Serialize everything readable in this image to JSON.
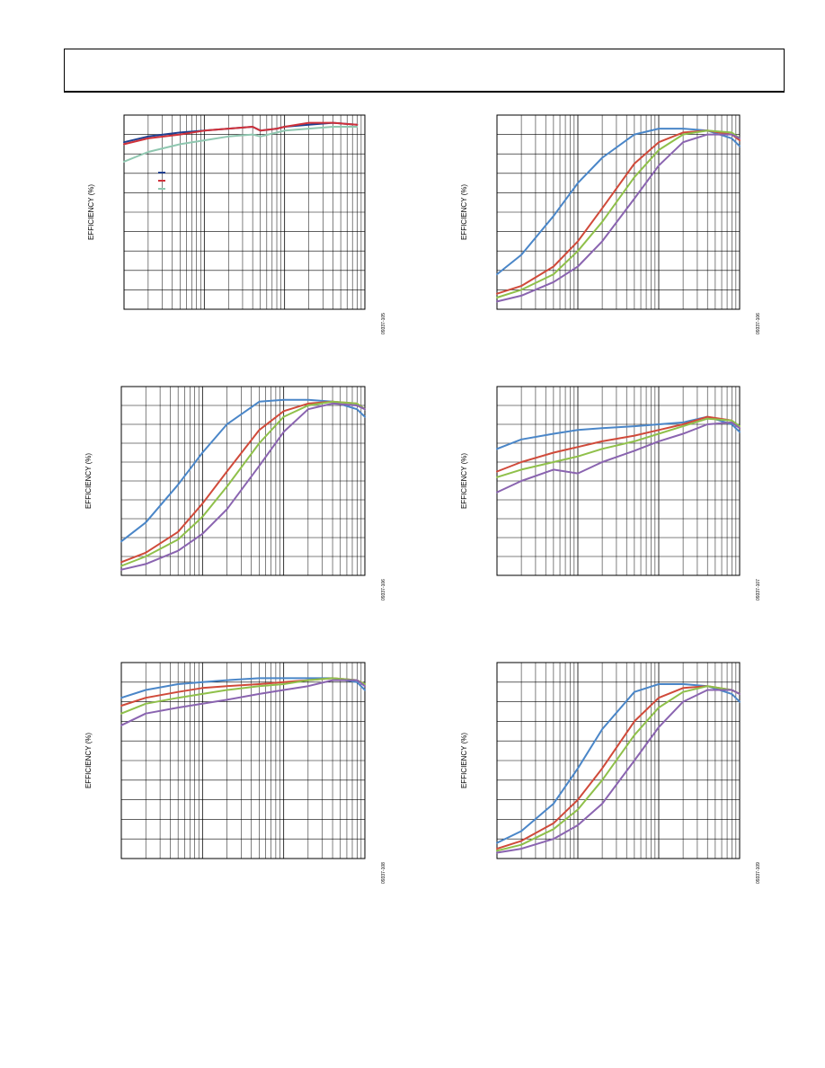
{
  "page": {
    "header_box": ""
  },
  "chart_data": [
    {
      "id": "chart-1",
      "type": "line",
      "ylabel": "EFFICIENCY (%)",
      "figure_id": "09337-105",
      "x_scale": "log",
      "xlim": [
        1,
        1000
      ],
      "ylim": [
        0,
        100
      ],
      "grid": true,
      "legend_position": "upper-left",
      "series": [
        {
          "color": "#1f3f8f",
          "x": [
            1,
            2,
            5,
            10,
            20,
            40,
            50,
            80,
            100,
            200,
            400,
            800
          ],
          "y": [
            86,
            89,
            91,
            92,
            93,
            94,
            92,
            93,
            94,
            95,
            96,
            95
          ]
        },
        {
          "color": "#d0313a",
          "x": [
            1,
            2,
            5,
            10,
            20,
            40,
            50,
            80,
            100,
            200,
            400,
            800
          ],
          "y": [
            85,
            88,
            90,
            92,
            93,
            94,
            92,
            93,
            94,
            96,
            96,
            95
          ]
        },
        {
          "color": "#8fc7b0",
          "x": [
            1,
            2,
            5,
            10,
            20,
            40,
            50,
            80,
            100,
            200,
            400,
            800
          ],
          "y": [
            76,
            81,
            85,
            87,
            89,
            90,
            89,
            91,
            92,
            93,
            94,
            94
          ]
        }
      ]
    },
    {
      "id": "chart-2",
      "type": "line",
      "ylabel": "EFFICIENCY (%)",
      "figure_id": "09337-106",
      "x_scale": "log",
      "xlim": [
        1,
        1000
      ],
      "ylim": [
        0,
        100
      ],
      "grid": true,
      "series": [
        {
          "color": "#4a86c8",
          "x": [
            1,
            2,
            5,
            10,
            20,
            50,
            100,
            200,
            400,
            800,
            1000
          ],
          "y": [
            18,
            28,
            48,
            65,
            78,
            90,
            93,
            93,
            92,
            88,
            84
          ]
        },
        {
          "color": "#d04a3a",
          "x": [
            1,
            2,
            5,
            10,
            20,
            50,
            100,
            200,
            400,
            800,
            1000
          ],
          "y": [
            8,
            12,
            22,
            35,
            52,
            75,
            86,
            91,
            92,
            90,
            87
          ]
        },
        {
          "color": "#8fc04a",
          "x": [
            1,
            2,
            5,
            10,
            20,
            50,
            100,
            200,
            400,
            800,
            1000
          ],
          "y": [
            6,
            10,
            18,
            30,
            45,
            68,
            82,
            90,
            92,
            91,
            88
          ]
        },
        {
          "color": "#8a64b0",
          "x": [
            1,
            2,
            5,
            10,
            20,
            50,
            100,
            200,
            400,
            800,
            1000
          ],
          "y": [
            4,
            7,
            14,
            22,
            35,
            57,
            74,
            86,
            90,
            90,
            88
          ]
        }
      ]
    },
    {
      "id": "chart-3",
      "type": "line",
      "ylabel": "EFFICIENCY (%)",
      "figure_id": "09337-106",
      "x_scale": "log",
      "xlim": [
        1,
        1000
      ],
      "ylim": [
        0,
        100
      ],
      "grid": true,
      "series": [
        {
          "color": "#4a86c8",
          "x": [
            1,
            2,
            5,
            10,
            20,
            50,
            100,
            200,
            400,
            800,
            1000
          ],
          "y": [
            18,
            28,
            48,
            65,
            80,
            92,
            93,
            93,
            92,
            88,
            84
          ]
        },
        {
          "color": "#d04a3a",
          "x": [
            1,
            2,
            5,
            10,
            20,
            50,
            100,
            200,
            400,
            800,
            1000
          ],
          "y": [
            7,
            12,
            23,
            38,
            55,
            77,
            87,
            91,
            92,
            91,
            88
          ]
        },
        {
          "color": "#8fc04a",
          "x": [
            1,
            2,
            5,
            10,
            20,
            50,
            100,
            200,
            400,
            800,
            1000
          ],
          "y": [
            5,
            10,
            19,
            31,
            47,
            70,
            84,
            90,
            92,
            91,
            88
          ]
        },
        {
          "color": "#8a64b0",
          "x": [
            1,
            2,
            5,
            10,
            20,
            50,
            100,
            200,
            400,
            800,
            1000
          ],
          "y": [
            3,
            6,
            13,
            22,
            35,
            58,
            76,
            88,
            91,
            90,
            88
          ]
        }
      ]
    },
    {
      "id": "chart-4",
      "type": "line",
      "ylabel": "EFFICIENCY (%)",
      "figure_id": "09337-107",
      "x_scale": "log",
      "xlim": [
        1,
        1000
      ],
      "ylim": [
        0,
        100
      ],
      "grid": true,
      "series": [
        {
          "color": "#4a86c8",
          "x": [
            1,
            2,
            5,
            10,
            20,
            50,
            100,
            200,
            400,
            800,
            1000
          ],
          "y": [
            67,
            72,
            75,
            77,
            78,
            79,
            80,
            81,
            84,
            80,
            76
          ]
        },
        {
          "color": "#d04a3a",
          "x": [
            1,
            2,
            5,
            10,
            20,
            50,
            100,
            200,
            400,
            800,
            1000
          ],
          "y": [
            55,
            60,
            65,
            68,
            71,
            74,
            77,
            80,
            84,
            82,
            78
          ]
        },
        {
          "color": "#8fc04a",
          "x": [
            1,
            2,
            5,
            10,
            20,
            50,
            100,
            200,
            400,
            800,
            1000
          ],
          "y": [
            52,
            56,
            60,
            63,
            67,
            71,
            75,
            79,
            83,
            82,
            79
          ]
        },
        {
          "color": "#8a64b0",
          "x": [
            1,
            2,
            5,
            10,
            20,
            50,
            100,
            200,
            400,
            800,
            1000
          ],
          "y": [
            44,
            50,
            56,
            54,
            60,
            66,
            71,
            75,
            80,
            81,
            78
          ]
        }
      ]
    },
    {
      "id": "chart-5",
      "type": "line",
      "ylabel": "EFFICIENCY (%)",
      "figure_id": "09337-108",
      "x_scale": "log",
      "xlim": [
        1,
        1000
      ],
      "ylim": [
        0,
        100
      ],
      "grid": true,
      "series": [
        {
          "color": "#4a86c8",
          "x": [
            1,
            2,
            5,
            10,
            20,
            50,
            100,
            200,
            400,
            800,
            1000
          ],
          "y": [
            82,
            86,
            89,
            90,
            91,
            92,
            92,
            92,
            92,
            90,
            86
          ]
        },
        {
          "color": "#d04a3a",
          "x": [
            1,
            2,
            5,
            10,
            20,
            50,
            100,
            200,
            400,
            800,
            1000
          ],
          "y": [
            78,
            82,
            85,
            87,
            88,
            89,
            90,
            91,
            92,
            91,
            89
          ]
        },
        {
          "color": "#8fc04a",
          "x": [
            1,
            2,
            5,
            10,
            20,
            50,
            100,
            200,
            400,
            800,
            1000
          ],
          "y": [
            74,
            79,
            82,
            84,
            86,
            88,
            89,
            91,
            92,
            91,
            89
          ]
        },
        {
          "color": "#8a64b0",
          "x": [
            1,
            2,
            5,
            10,
            20,
            50,
            100,
            200,
            400,
            800,
            1000
          ],
          "y": [
            68,
            74,
            77,
            79,
            81,
            84,
            86,
            88,
            91,
            91,
            88
          ]
        }
      ]
    },
    {
      "id": "chart-6",
      "type": "line",
      "ylabel": "EFFICIENCY (%)",
      "figure_id": "09337-109",
      "x_scale": "log",
      "xlim": [
        1,
        1000
      ],
      "ylim": [
        0,
        100
      ],
      "grid": true,
      "series": [
        {
          "color": "#4a86c8",
          "x": [
            1,
            2,
            5,
            10,
            20,
            50,
            100,
            200,
            400,
            800,
            1000
          ],
          "y": [
            8,
            14,
            28,
            46,
            66,
            85,
            89,
            89,
            88,
            84,
            80
          ]
        },
        {
          "color": "#d04a3a",
          "x": [
            1,
            2,
            5,
            10,
            20,
            50,
            100,
            200,
            400,
            800,
            1000
          ],
          "y": [
            5,
            9,
            18,
            30,
            46,
            70,
            82,
            87,
            88,
            86,
            84
          ]
        },
        {
          "color": "#8fc04a",
          "x": [
            1,
            2,
            5,
            10,
            20,
            50,
            100,
            200,
            400,
            800,
            1000
          ],
          "y": [
            4,
            7,
            15,
            25,
            40,
            63,
            77,
            85,
            88,
            86,
            84
          ]
        },
        {
          "color": "#8a64b0",
          "x": [
            1,
            2,
            5,
            10,
            20,
            50,
            100,
            200,
            400,
            800,
            1000
          ],
          "y": [
            3,
            5,
            10,
            17,
            28,
            50,
            67,
            80,
            86,
            86,
            84
          ]
        }
      ]
    }
  ]
}
